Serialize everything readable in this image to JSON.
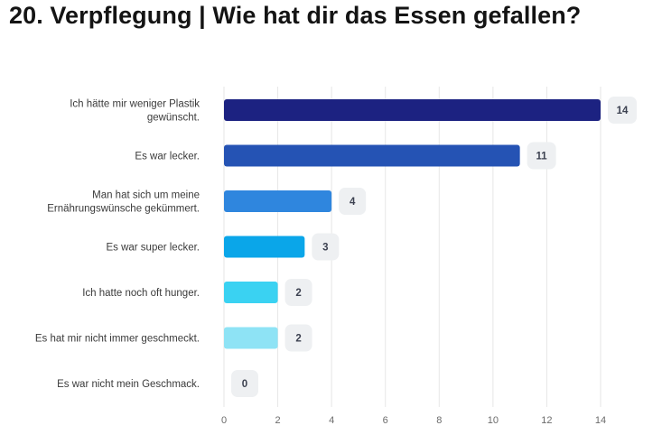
{
  "header": {
    "title": "20. Verpflegung | Wie hat dir das Essen gefallen?"
  },
  "chart_data": {
    "type": "bar",
    "orientation": "horizontal",
    "title": "20. Verpflegung | Wie hat dir das Essen gefallen?",
    "categories": [
      [
        "Ich hätte mir weniger Plastik",
        "gewünscht."
      ],
      [
        "Es war lecker."
      ],
      [
        "Man hat sich um meine",
        "Ernährungswünsche gekümmert."
      ],
      [
        "Es war super lecker."
      ],
      [
        "Ich hatte noch oft hunger."
      ],
      [
        "Es hat mir nicht immer geschmeckt."
      ],
      [
        "Es war nicht mein Geschmack."
      ]
    ],
    "values": [
      14,
      11,
      4,
      3,
      2,
      2,
      0
    ],
    "value_labels": [
      "14",
      "11",
      "4",
      "3",
      "2",
      "2",
      "0"
    ],
    "colors": [
      "#1c2281",
      "#2553b4",
      "#2f86de",
      "#0aa6e9",
      "#3ad2f2",
      "#8ee3f5",
      "#cfeef6"
    ],
    "xlim": [
      0,
      14
    ],
    "xticks": [
      "0",
      "2",
      "4",
      "6",
      "8",
      "10",
      "12",
      "14"
    ],
    "grid": true,
    "xlabel": "",
    "ylabel": ""
  }
}
